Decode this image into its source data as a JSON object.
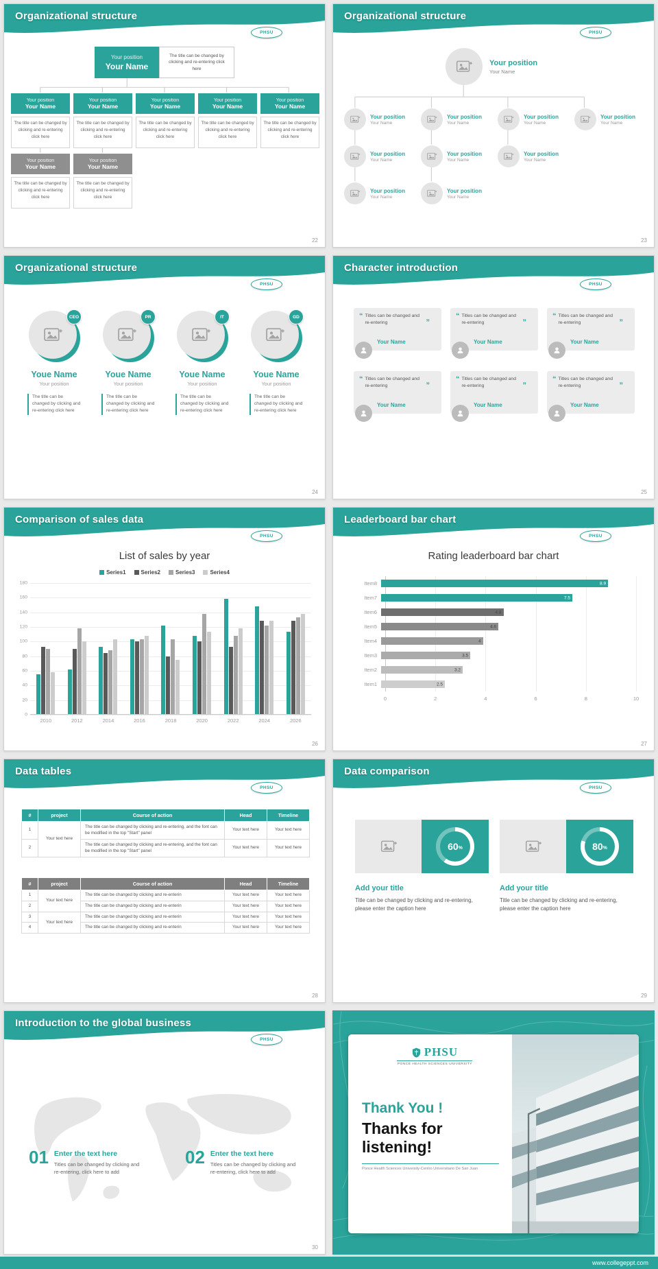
{
  "page": {
    "footer_url": "www.collegeppt.com"
  },
  "logo": {
    "text": "PHSU"
  },
  "colors": {
    "accent": "#2aa49b",
    "gray_node": "#8f8f8f",
    "table2_header": "#7f7f7f"
  },
  "slides": {
    "s22": {
      "title": "Organizational structure",
      "page": "22",
      "top": {
        "position": "Your position",
        "name": "Your Name",
        "desc": "The title can be changed by clicking and re-entering click here"
      },
      "nodes": [
        {
          "position": "Your position",
          "name": "Your Name",
          "desc": "The title can be changed by clicking and re-entering click here"
        },
        {
          "position": "Your position",
          "name": "Your Name",
          "desc": "The title can be changed by clicking and re-entering click here"
        },
        {
          "position": "Your position",
          "name": "Your Name",
          "desc": "The title can be changed by clicking and re-entering click here"
        },
        {
          "position": "Your position",
          "name": "Your Name",
          "desc": "The title can be changed by clicking and re-entering click here"
        },
        {
          "position": "Your position",
          "name": "Your Name",
          "desc": "The title can be changed by clicking and re-entering click here"
        }
      ],
      "sub_nodes": [
        {
          "position": "Your position",
          "name": "Your Name",
          "desc": "The title can be changed by clicking and re-entering click here"
        },
        {
          "position": "Your position",
          "name": "Your Name",
          "desc": "The title can be changed by clicking and re-entering click here"
        }
      ]
    },
    "s23": {
      "title": "Organizational structure",
      "page": "23",
      "top": {
        "position": "Your position",
        "name": "Your Name"
      },
      "rows": [
        [
          {
            "position": "Your position",
            "name": "Your Name"
          },
          {
            "position": "Your position",
            "name": "Your Name"
          },
          {
            "position": "Your position",
            "name": "Your Name"
          },
          {
            "position": "Your position",
            "name": "Your Name"
          }
        ],
        [
          {
            "position": "Your position",
            "name": "Your Name"
          },
          {
            "position": "Your position",
            "name": "Your Name"
          },
          {
            "position": "Your position",
            "name": "Your Name"
          }
        ],
        [
          {
            "position": "Your position",
            "name": "Your Name"
          },
          {
            "position": "Your position",
            "name": "Your Name"
          }
        ]
      ]
    },
    "s24": {
      "title": "Organizational structure",
      "page": "24",
      "people": [
        {
          "badge": "CEO",
          "name": "Youe Name",
          "role": "Your position",
          "desc": "The title can be changed by clicking and re-entering click here"
        },
        {
          "badge": "PR",
          "name": "Youe Name",
          "role": "Your position",
          "desc": "The title can be changed by clicking and re-entering click here"
        },
        {
          "badge": "IT",
          "name": "Youe Name",
          "role": "Your position",
          "desc": "The title can be changed by clicking and re-entering click here"
        },
        {
          "badge": "GD",
          "name": "Youe Name",
          "role": "Your position",
          "desc": "The title can be changed by clicking and re-entering click here"
        }
      ]
    },
    "s25": {
      "title": "Character introduction",
      "page": "25",
      "cards": [
        {
          "quote": "Titles can be changed and re-entering",
          "name": "Your Name"
        },
        {
          "quote": "Titles can be changed and re-entering",
          "name": "Your Name"
        },
        {
          "quote": "Titles can be changed and re-entering",
          "name": "Your Name"
        },
        {
          "quote": "Titles can be changed and re-entering",
          "name": "Your Name"
        },
        {
          "quote": "Titles can be changed and re-entering",
          "name": "Your Name"
        },
        {
          "quote": "Titles can be changed and re-entering",
          "name": "Your Name"
        }
      ]
    },
    "s26": {
      "title": "Comparison of sales data",
      "page": "26"
    },
    "s27": {
      "title": "Leaderboard bar chart",
      "page": "27"
    },
    "s28": {
      "title": "Data tables",
      "page": "28",
      "table1": {
        "headers": [
          "#",
          "project",
          "Course of action",
          "Head",
          "Timeline"
        ],
        "rows": [
          {
            "num": "1",
            "project": "Your text here",
            "span": 2,
            "course": "The title can be changed by clicking and re-entering, and the font can be modified in the top \"Start\" panel",
            "head": "Your text here",
            "timeline": "Your text here"
          },
          {
            "num": "2",
            "course": "The title can be changed by clicking and re-entering, and the font can be modified in the top \"Start\" panel",
            "head": "Your text here",
            "timeline": "Your text here"
          }
        ]
      },
      "table2": {
        "headers": [
          "#",
          "project",
          "Course of action",
          "Head",
          "Timeline"
        ],
        "rows": [
          {
            "num": "1",
            "project": "Your text here",
            "span": 2,
            "course": "The title can be changed by clicking and re-enterin",
            "head": "Your text here",
            "timeline": "Your text here"
          },
          {
            "num": "2",
            "course": "The title can be changed by clicking and re-enterin",
            "head": "Your text here",
            "timeline": "Your text here"
          },
          {
            "num": "3",
            "project": "Your text here",
            "span": 2,
            "course": "The title can be changed by clicking and re-enterin",
            "head": "Your text here",
            "timeline": "Your text here"
          },
          {
            "num": "4",
            "course": "The title can be changed by clicking and re-enterin",
            "head": "Your text here",
            "timeline": "Your text here"
          }
        ]
      }
    },
    "s29": {
      "title": "Data comparison",
      "page": "29",
      "items": [
        {
          "percent": 60,
          "percent_label": "60",
          "unit": "%",
          "heading": "Add your title",
          "desc": "Title can be changed by clicking and re-entering, please enter the caption here"
        },
        {
          "percent": 80,
          "percent_label": "80",
          "unit": "%",
          "heading": "Add your title",
          "desc": "Title can be changed by clicking and re-entering, please enter the caption here"
        }
      ]
    },
    "s30": {
      "title": "Introduction to the global business",
      "page": "30",
      "items": [
        {
          "num": "01",
          "heading": "Enter the text here",
          "desc": "Titles can be changed by clicking and re-entering, click here to add"
        },
        {
          "num": "02",
          "heading": "Enter the text here",
          "desc": "Titles can be changed by clicking and re-entering, click here to add"
        }
      ]
    },
    "thanks": {
      "logo_text": "PHSU",
      "logo_sub": "Ponce Health Sciences University",
      "line1": "Thank You !",
      "line2": "Thanks for listening!",
      "subtitle": "Ponce Health Sciences University-Centro Universitario De San Juan"
    }
  },
  "chart_data": [
    {
      "type": "bar",
      "title": "List of sales by year",
      "categories": [
        "2010",
        "2012",
        "2014",
        "2016",
        "2018",
        "2020",
        "2022",
        "2024",
        "2026"
      ],
      "series": [
        {
          "name": "Series1",
          "color": "#2aa49b",
          "values": [
            55,
            62,
            93,
            103,
            122,
            108,
            158,
            148,
            113
          ]
        },
        {
          "name": "Series2",
          "color": "#595959",
          "values": [
            93,
            90,
            84,
            100,
            80,
            100,
            93,
            128,
            128
          ]
        },
        {
          "name": "Series3",
          "color": "#a6a6a6",
          "values": [
            90,
            118,
            88,
            103,
            103,
            138,
            108,
            122,
            133
          ]
        },
        {
          "name": "Series4",
          "color": "#cccccc",
          "values": [
            58,
            100,
            103,
            108,
            75,
            113,
            118,
            128,
            138
          ]
        }
      ],
      "xlabel": "",
      "ylabel": "",
      "ylim": [
        0,
        180
      ],
      "yticks": [
        0,
        20,
        40,
        60,
        80,
        100,
        120,
        140,
        160,
        180
      ],
      "grid": true,
      "legend_position": "top"
    },
    {
      "type": "bar-horizontal",
      "title": "Rating leaderboard bar chart",
      "categories": [
        "Item8",
        "Item7",
        "Item6",
        "Item5",
        "Item4",
        "Item3",
        "Item2",
        "Item1"
      ],
      "values": [
        8.9,
        7.5,
        4.8,
        4.6,
        4,
        3.5,
        3.2,
        2.5
      ],
      "colors": [
        "#2aa49b",
        "#2aa49b",
        "#6e6e6e",
        "#8a8a8a",
        "#9a9a9a",
        "#ababab",
        "#bcbcbc",
        "#cdcdcd"
      ],
      "xlim": [
        0,
        10
      ],
      "xticks": [
        0,
        2,
        4,
        6,
        8,
        10
      ],
      "grid": true
    }
  ]
}
